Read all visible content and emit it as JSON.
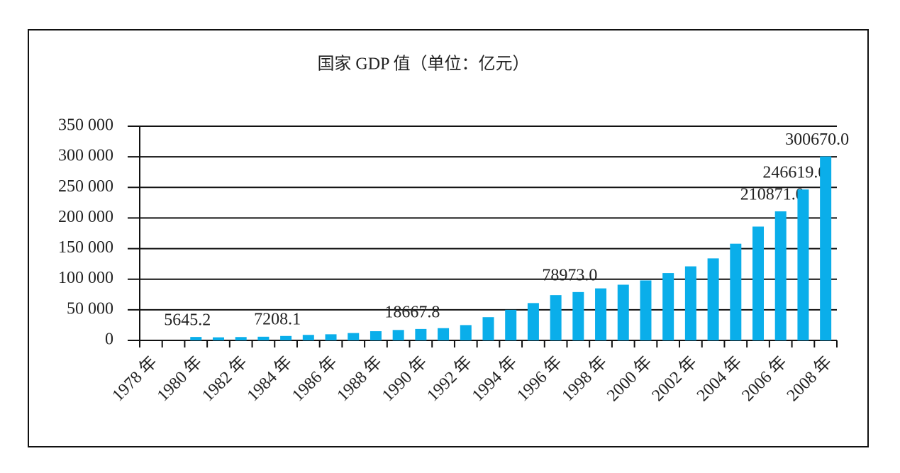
{
  "chart_data": {
    "type": "bar",
    "title": "国家 GDP 值（单位：亿元）",
    "categories": [
      "1978 年",
      null,
      "1980 年",
      null,
      "1982 年",
      null,
      "1984 年",
      null,
      "1986 年",
      null,
      "1988 年",
      null,
      "1990 年",
      null,
      "1992 年",
      null,
      "1994 年",
      null,
      "1996 年",
      null,
      "1998 年",
      null,
      "2000 年",
      null,
      "2002 年",
      null,
      "2004 年",
      null,
      "2006 年",
      null,
      "2008 年"
    ],
    "values": [
      null,
      null,
      5645.2,
      5000,
      5500,
      6000,
      7208.1,
      9000,
      10000,
      12000,
      15000,
      17000,
      18667.8,
      20000,
      25000,
      38000,
      50000,
      61000,
      74000,
      78973.0,
      85000,
      91000,
      98000,
      110000,
      121000,
      134000,
      158000,
      186000,
      210871.0,
      246619.0,
      300670.0
    ],
    "value_labels": [
      null,
      null,
      "5645.2",
      null,
      null,
      null,
      "7208.1",
      null,
      null,
      null,
      null,
      null,
      "18667.8",
      null,
      null,
      null,
      null,
      null,
      null,
      "78973.0",
      null,
      null,
      null,
      null,
      null,
      null,
      null,
      null,
      "210871.0",
      "246619.0",
      "300670.0"
    ],
    "color": "#0aaeea",
    "ylim": [
      0,
      350000
    ],
    "yticks": [
      0,
      {
        "value": 50000,
        "label": "50 000"
      },
      {
        "value": 100000,
        "label": "100 000"
      },
      {
        "value": 150000,
        "label": "150 000"
      },
      {
        "value": 200000,
        "label": "200 000"
      },
      {
        "value": 250000,
        "label": "250 000"
      },
      {
        "value": 300000,
        "label": "300 000"
      },
      {
        "value": 350000,
        "label": "350 000"
      }
    ],
    "grid": true
  }
}
